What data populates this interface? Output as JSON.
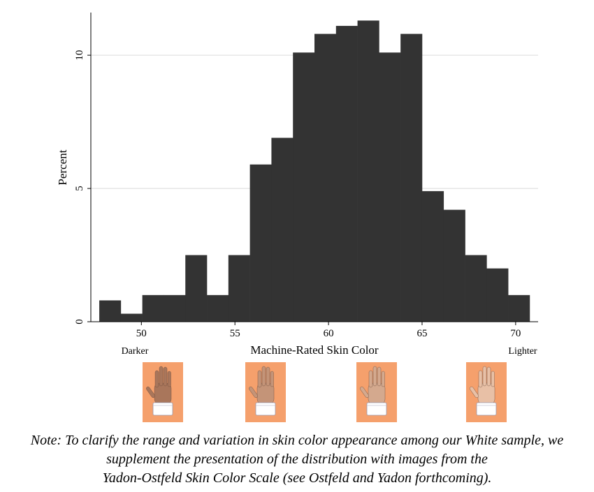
{
  "chart_data": {
    "type": "bar",
    "title": "",
    "xlabel": "Machine-Rated Skin Color",
    "ylabel": "Percent",
    "x_bin_edges": [
      47.75,
      48.9,
      50.05,
      51.2,
      52.35,
      53.5,
      54.65,
      55.8,
      56.95,
      58.1,
      59.25,
      60.4,
      61.55,
      62.7,
      63.85,
      65.0,
      66.15,
      67.3,
      68.45,
      69.6,
      70.75
    ],
    "values": [
      0.8,
      0.3,
      1.0,
      1.0,
      2.5,
      1.0,
      2.5,
      5.9,
      6.9,
      10.1,
      10.8,
      11.1,
      11.3,
      10.1,
      10.8,
      4.9,
      4.2,
      2.5,
      2.0,
      1.0
    ],
    "xlim": [
      47.3,
      71.2
    ],
    "ylim": [
      0,
      11.6
    ],
    "x_ticks": [
      50,
      55,
      60,
      65,
      70
    ],
    "y_ticks": [
      0,
      5,
      10
    ],
    "grid": "horizontal",
    "bar_color": "#333333",
    "left_end_label": "Darker",
    "right_end_label": "Lighter"
  },
  "scale_images": [
    {
      "name": "hand-darker-icon",
      "bg": "#f5a06c",
      "skin": "#a9765b"
    },
    {
      "name": "hand-medium-dark-icon",
      "bg": "#f5a06c",
      "skin": "#c49478"
    },
    {
      "name": "hand-medium-light-icon",
      "bg": "#f5a06c",
      "skin": "#d4a98e"
    },
    {
      "name": "hand-lighter-icon",
      "bg": "#f5a06c",
      "skin": "#e8c0a6"
    }
  ],
  "note": {
    "line1": "Note: To clarify the range and variation in skin color appearance among our White sample, we",
    "line2": "supplement the presentation of the distribution with images from the",
    "line3": "Yadon-Ostfeld Skin Color Scale (see Ostfeld and Yadon forthcoming)."
  }
}
